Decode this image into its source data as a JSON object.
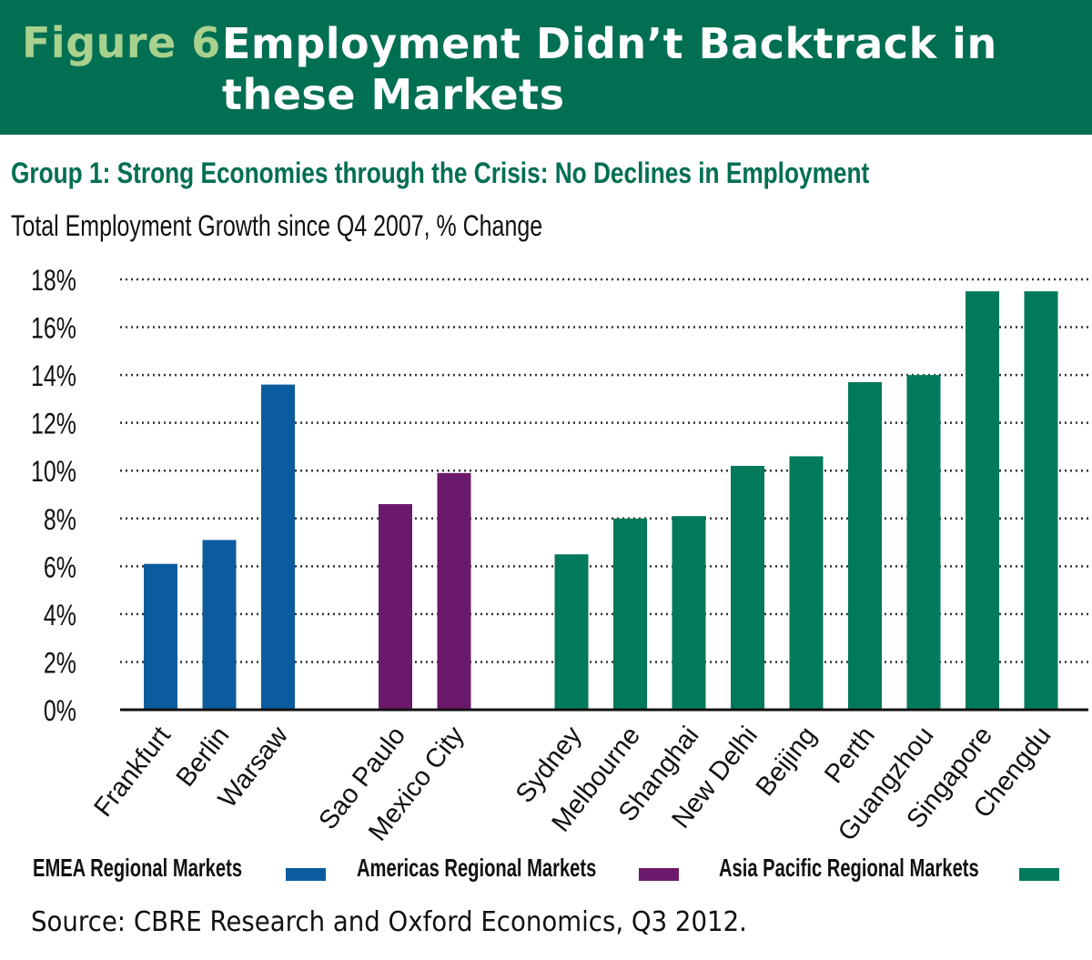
{
  "header": {
    "figure_label": "Figure 6:",
    "title": "Employment Didn’t Backtrack in these Markets"
  },
  "subtitle": "Group 1: Strong Economies through the Crisis: No Declines in Employment",
  "source": "Source: CBRE Research and Oxford Economics, Q3 2012.",
  "chart_data": {
    "type": "bar",
    "title": "",
    "xlabel": "",
    "ylabel": "Total Employment Growth since Q4 2007, % Change",
    "ylim": [
      0,
      18
    ],
    "yticks": [
      "0%",
      "2%",
      "4%",
      "6%",
      "8%",
      "10%",
      "12%",
      "14%",
      "16%",
      "18%"
    ],
    "grid": true,
    "legend_position": "bottom",
    "groups": [
      {
        "name": "EMEA Regional Markets",
        "color": "#0b5c9e",
        "categories": [
          "Frankfurt",
          "Berlin",
          "Warsaw"
        ],
        "values": [
          6.1,
          7.1,
          13.6
        ]
      },
      {
        "name": "Americas Regional Markets",
        "color": "#6b1a6b",
        "categories": [
          "Sao Paulo",
          "Mexico City"
        ],
        "values": [
          8.6,
          9.9
        ]
      },
      {
        "name": "Asia Pacific Regional Markets",
        "color": "#007a5a",
        "categories": [
          "Sydney",
          "Melbourne",
          "Shanghai",
          "New Delhi",
          "Beijing",
          "Perth",
          "Guangzhou",
          "Singapore",
          "Chengdu"
        ],
        "values": [
          6.5,
          8.0,
          8.1,
          10.2,
          10.6,
          13.7,
          14.0,
          17.5,
          17.5
        ]
      }
    ]
  }
}
